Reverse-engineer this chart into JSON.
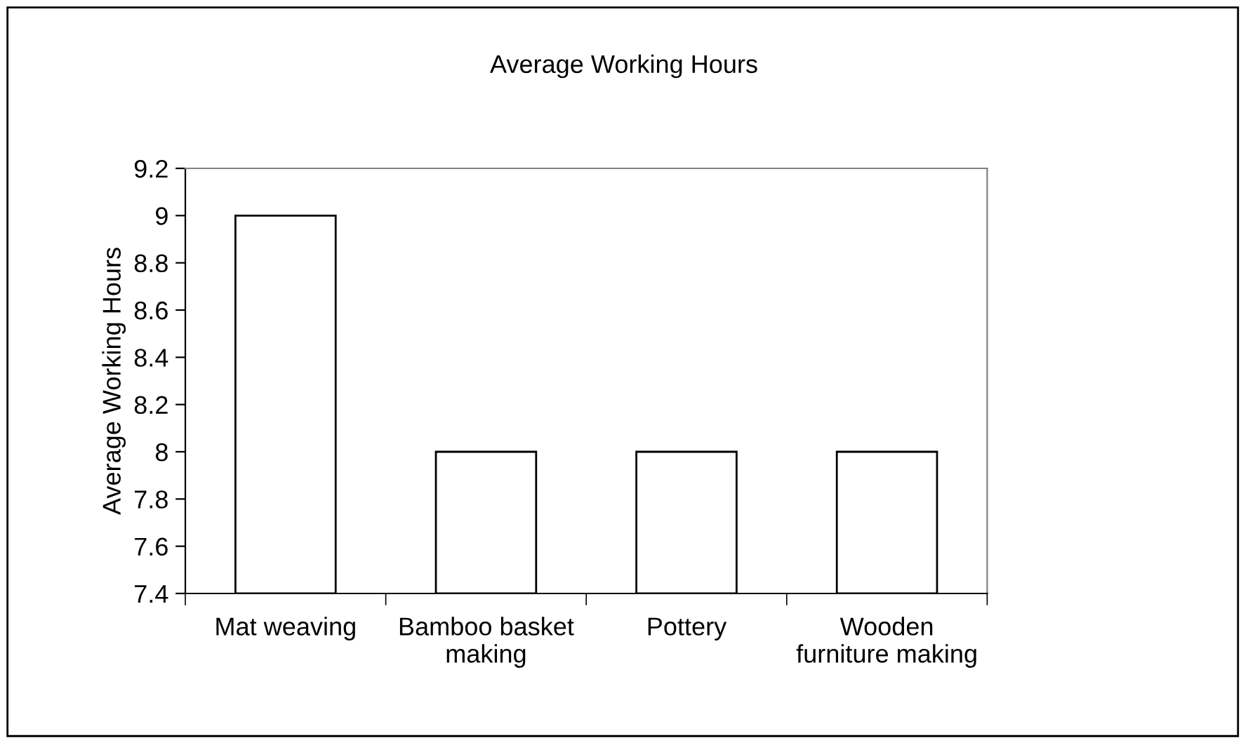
{
  "chart_data": {
    "type": "bar",
    "title": "Average Working Hours",
    "ylabel": "Average Working Hours",
    "categories": [
      "Mat weaving",
      "Bamboo basket\nmaking",
      "Pottery",
      "Wooden\nfurniture making"
    ],
    "values": [
      9,
      8,
      8,
      8
    ],
    "color": "#ffffff",
    "ylim": [
      7.4,
      9.2
    ],
    "yticks": [
      7.4,
      7.6,
      7.8,
      8,
      8.2,
      8.4,
      8.6,
      8.8,
      9,
      9.2
    ],
    "grid": false,
    "legend": false
  }
}
